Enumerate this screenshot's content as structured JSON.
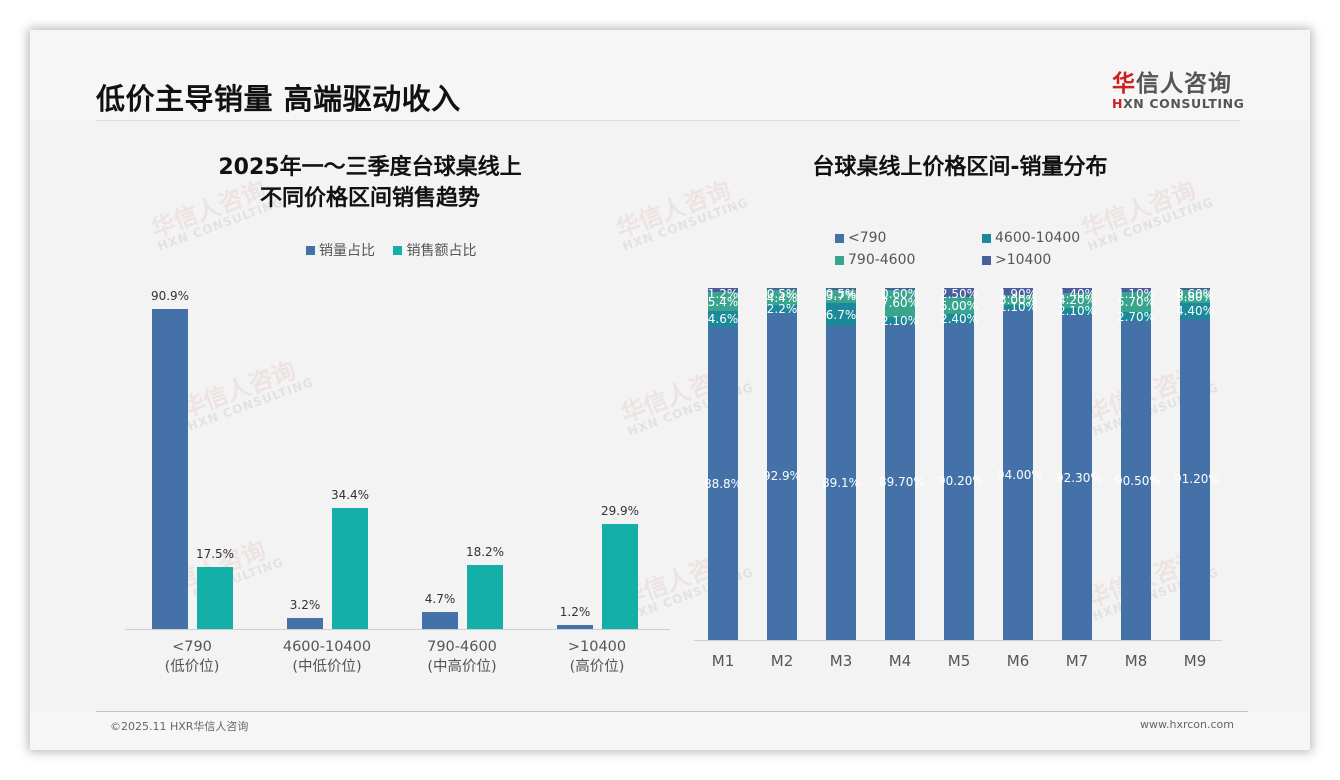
{
  "page": {
    "title": "低价主导销量 高端驱动收入",
    "logo": {
      "cn_red": "华",
      "cn_rest": "信人咨询",
      "en_red": "H",
      "en_rest": "XN CONSULTING"
    },
    "footer": {
      "left": "©2025.11 HXR华信人咨询",
      "right": "www.hxrcon.com"
    },
    "watermark": {
      "cn": "华信人咨询",
      "en": "HXN CONSULTING"
    }
  },
  "colors": {
    "sales_volume": "#4472a8",
    "sales_amount": "#14b0a8",
    "lt790": "#4472a8",
    "r4600_10400": "#1a8a9a",
    "r790_4600": "#3aa58e",
    "gt10400": "#4b5e9c"
  },
  "left_chart": {
    "title_line1": "2025年一～三季度台球桌线上",
    "title_line2": "不同价格区间销售趋势",
    "legend": [
      "销量占比",
      "销售额占比"
    ],
    "categories": [
      {
        "line1": "<790",
        "line2": "(低价位)"
      },
      {
        "line1": "4600-10400",
        "line2": "(中低价位)"
      },
      {
        "line1": "790-4600",
        "line2": "(中高价位)"
      },
      {
        "line1": ">10400",
        "line2": "(高价位)"
      }
    ],
    "volume_labels": [
      "90.9%",
      "3.2%",
      "4.7%",
      "1.2%"
    ],
    "amount_labels": [
      "17.5%",
      "34.4%",
      "18.2%",
      "29.9%"
    ]
  },
  "right_chart": {
    "title": "台球桌线上价格区间-销量分布",
    "legend": [
      "<790",
      "4600-10400",
      "790-4600",
      ">10400"
    ],
    "months": [
      "M1",
      "M2",
      "M3",
      "M4",
      "M5",
      "M6",
      "M7",
      "M8",
      "M9"
    ],
    "labels": {
      "lt790": [
        "88.8%",
        "92.9%",
        "89.1%",
        "89.70%",
        "90.20%",
        "94.00%",
        "92.30%",
        "90.50%",
        "91.20%"
      ],
      "r4600_10400": [
        "4.6%",
        "2.2%",
        "6.7%",
        "2.10%",
        "2.40%",
        "1.10%",
        "2.10%",
        "2.70%",
        "4.40%"
      ],
      "r790_4600": [
        "5.4%",
        "4.4%",
        "3.7%",
        "7.60%",
        "5.00%",
        "3.00%",
        "4.20%",
        "5.70%",
        "3.80%"
      ],
      "gt10400": [
        "1.2%",
        "0.5%",
        "0.5%",
        "0.60%",
        "2.50%",
        "1.90%",
        "1.40%",
        "1.10%",
        "0.60%"
      ]
    }
  },
  "chart_data": [
    {
      "type": "bar",
      "title": "2025年一～三季度台球桌线上不同价格区间销售趋势",
      "categories": [
        "<790 (低价位)",
        "4600-10400 (中低价位)",
        "790-4600 (中高价位)",
        ">10400 (高价位)"
      ],
      "series": [
        {
          "name": "销量占比",
          "values": [
            90.9,
            3.2,
            4.7,
            1.2
          ]
        },
        {
          "name": "销售额占比",
          "values": [
            17.5,
            34.4,
            18.2,
            29.9
          ]
        }
      ],
      "xlabel": "",
      "ylabel": "",
      "ylim": [
        0,
        100
      ],
      "grid": false,
      "legend_position": "top",
      "unit": "%"
    },
    {
      "type": "bar",
      "stacked": true,
      "title": "台球桌线上价格区间-销量分布",
      "categories": [
        "M1",
        "M2",
        "M3",
        "M4",
        "M5",
        "M6",
        "M7",
        "M8",
        "M9"
      ],
      "series": [
        {
          "name": "<790",
          "values": [
            88.8,
            92.9,
            89.1,
            89.7,
            90.2,
            94.0,
            92.3,
            90.5,
            91.2
          ]
        },
        {
          "name": "4600-10400",
          "values": [
            4.6,
            2.2,
            6.7,
            2.1,
            2.4,
            1.1,
            2.1,
            2.7,
            4.4
          ]
        },
        {
          "name": "790-4600",
          "values": [
            5.4,
            4.4,
            3.7,
            7.6,
            5.0,
            3.0,
            4.2,
            5.7,
            3.8
          ]
        },
        {
          "name": ">10400",
          "values": [
            1.2,
            0.5,
            0.5,
            0.6,
            2.5,
            1.9,
            1.4,
            1.1,
            0.6
          ]
        }
      ],
      "xlabel": "",
      "ylabel": "",
      "ylim": [
        0,
        100
      ],
      "grid": false,
      "legend_position": "top",
      "unit": "%"
    }
  ]
}
